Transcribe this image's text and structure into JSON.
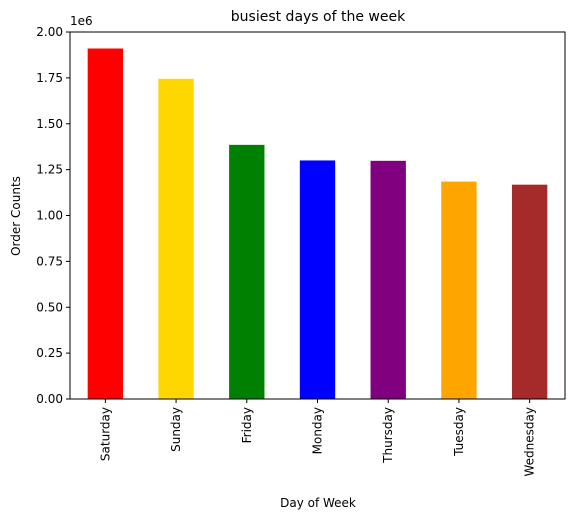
{
  "chart_data": {
    "type": "bar",
    "title": "busiest days of the week",
    "xlabel": "Day of Week",
    "ylabel": "Order Counts",
    "offset_label": "1e6",
    "categories": [
      "Saturday",
      "Sunday",
      "Friday",
      "Monday",
      "Thursday",
      "Tuesday",
      "Wednesday"
    ],
    "values": [
      1910000,
      1745000,
      1385000,
      1300000,
      1298000,
      1185000,
      1168000
    ],
    "colors": [
      "#ff0000",
      "#ffd700",
      "#008000",
      "#0000ff",
      "#800080",
      "#ffa500",
      "#a52a2a"
    ],
    "ylim": [
      0,
      2000000
    ],
    "yticks": [
      0,
      250000,
      500000,
      750000,
      1000000,
      1250000,
      1500000,
      1750000,
      2000000
    ],
    "ytick_labels": [
      "0.00",
      "0.25",
      "0.50",
      "0.75",
      "1.00",
      "1.25",
      "1.50",
      "1.75",
      "2.00"
    ],
    "grid": false,
    "legend": "none"
  }
}
